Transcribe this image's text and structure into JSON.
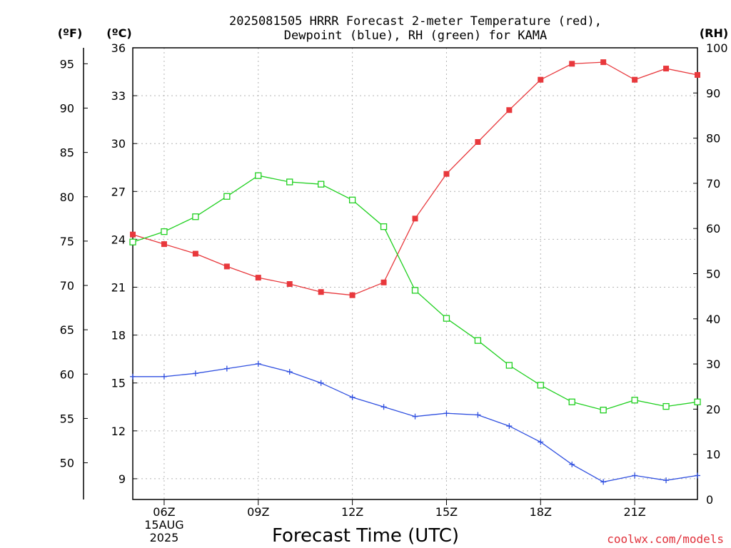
{
  "chart_data": {
    "type": "line",
    "title_line1": "2025081505 HRRR Forecast 2-meter Temperature (red),",
    "title_line2": "Dewpoint (blue), RH (green) for KAMA",
    "xlabel": "Forecast Time (UTC)",
    "credit": "coolwx.com/models",
    "unit_f": "(ºF)",
    "unit_c": "(ºC)",
    "unit_rh": "(RH)",
    "x_hours": [
      5,
      6,
      7,
      8,
      9,
      10,
      11,
      12,
      13,
      14,
      15,
      16,
      17,
      18,
      19,
      20,
      21,
      22,
      23
    ],
    "x_ticks": [
      {
        "hour": 6,
        "label": "06Z",
        "sub1": "15AUG",
        "sub2": "2025"
      },
      {
        "hour": 9,
        "label": "09Z",
        "sub1": "",
        "sub2": ""
      },
      {
        "hour": 12,
        "label": "12Z",
        "sub1": "",
        "sub2": ""
      },
      {
        "hour": 15,
        "label": "15Z",
        "sub1": "",
        "sub2": ""
      },
      {
        "hour": 18,
        "label": "18Z",
        "sub1": "",
        "sub2": ""
      },
      {
        "hour": 21,
        "label": "21Z",
        "sub1": "",
        "sub2": ""
      }
    ],
    "xlim": [
      5,
      23
    ],
    "ylim_c": [
      7.7,
      36
    ],
    "ylim_rh": [
      0,
      100
    ],
    "yticks_c": [
      "9",
      "12",
      "15",
      "18",
      "21",
      "24",
      "27",
      "30",
      "33",
      "36"
    ],
    "yticks_f": [
      "50",
      "55",
      "60",
      "65",
      "70",
      "75",
      "80",
      "85",
      "90",
      "95"
    ],
    "yticks_rh": [
      "0",
      "10",
      "20",
      "30",
      "40",
      "50",
      "60",
      "70",
      "80",
      "90",
      "100"
    ],
    "series": [
      {
        "key": "temperature",
        "color": "#e8383c",
        "marker": "filled-square",
        "values": [
          24.3,
          23.7,
          23.1,
          22.3,
          21.6,
          21.2,
          20.7,
          20.5,
          21.3,
          25.3,
          28.1,
          30.1,
          32.1,
          34.0,
          35.0,
          35.1,
          34.0,
          34.7,
          34.3
        ]
      },
      {
        "key": "dewpoint",
        "color": "#3050e0",
        "marker": "plus",
        "values": [
          15.4,
          15.4,
          15.6,
          15.9,
          16.2,
          15.7,
          15.0,
          14.1,
          13.5,
          12.9,
          13.1,
          13.0,
          12.3,
          11.3,
          9.9,
          8.8,
          9.2,
          8.9,
          9.2
        ]
      },
      {
        "key": "rh",
        "color": "#20d020",
        "marker": "open-square",
        "values": [
          57,
          59.3,
          62.6,
          67.1,
          71.7,
          70.3,
          69.8,
          66.3,
          60.4,
          46.3,
          40.1,
          35.2,
          29.7,
          25.3,
          21.6,
          19.8,
          22.0,
          20.6,
          21.6
        ]
      }
    ],
    "grid": true,
    "legend": "none"
  }
}
